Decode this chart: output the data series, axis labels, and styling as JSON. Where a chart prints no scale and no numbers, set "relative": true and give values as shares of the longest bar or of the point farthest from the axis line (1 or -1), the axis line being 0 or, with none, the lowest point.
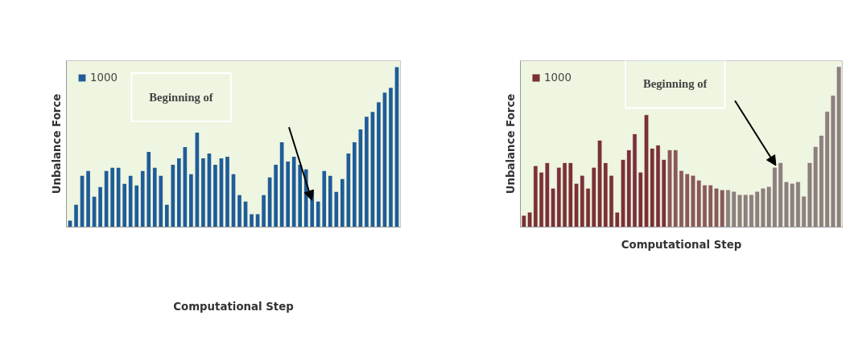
{
  "chart_data": [
    {
      "type": "bar",
      "relative": true,
      "xlabel": "Computational Step",
      "ylabel": "Unbalance Force",
      "legend": "top left",
      "grid": false,
      "annotations": [
        "Beginning of"
      ],
      "categories": [
        null,
        null,
        null,
        null,
        null,
        null,
        null,
        null,
        null,
        null,
        null,
        null,
        null,
        null,
        null,
        null,
        null,
        null,
        null,
        null,
        null,
        null,
        null,
        null,
        null,
        null,
        null,
        null,
        null,
        null,
        null,
        null,
        null,
        null,
        null,
        null,
        null,
        null,
        null,
        null,
        null,
        null,
        null,
        null,
        null,
        null,
        null,
        null,
        null,
        null,
        null,
        null,
        null,
        null,
        null
      ],
      "series": [
        {
          "name": "1000",
          "color": "#1f5c99",
          "values": [
            0.04,
            0.14,
            0.32,
            0.35,
            0.19,
            0.25,
            0.35,
            0.37,
            0.37,
            0.27,
            0.32,
            0.26,
            0.35,
            0.47,
            0.37,
            0.32,
            0.14,
            0.39,
            0.43,
            0.5,
            0.33,
            0.59,
            0.43,
            0.46,
            0.39,
            0.43,
            0.44,
            0.33,
            0.2,
            0.16,
            0.08,
            0.08,
            0.2,
            0.31,
            0.39,
            0.53,
            0.41,
            0.44,
            0.39,
            0.36,
            0.22,
            0.16,
            0.35,
            0.32,
            0.22,
            0.3,
            0.46,
            0.53,
            0.61,
            0.69,
            0.72,
            0.78,
            0.84,
            0.87,
            1
          ]
        }
      ]
    },
    {
      "type": "bar",
      "relative": true,
      "xlabel": "Computational Step",
      "ylabel": "Unbalance Force",
      "legend": "top left",
      "grid": false,
      "annotations": [
        "Beginning of"
      ],
      "categories": [
        null,
        null,
        null,
        null,
        null,
        null,
        null,
        null,
        null,
        null,
        null,
        null,
        null,
        null,
        null,
        null,
        null,
        null,
        null,
        null,
        null,
        null,
        null,
        null,
        null,
        null,
        null,
        null,
        null,
        null,
        null,
        null,
        null,
        null,
        null,
        null,
        null,
        null,
        null,
        null,
        null,
        null,
        null,
        null,
        null,
        null,
        null,
        null,
        null,
        null,
        null,
        null,
        null,
        null,
        null
      ],
      "series": [
        {
          "name": "1000",
          "color": "#7b3038",
          "colors": [
            "#7b3038",
            "#7b3038",
            "#7b3038",
            "#7b3038",
            "#7b3038",
            "#7b3038",
            "#7b3038",
            "#7b3038",
            "#7b3038",
            "#7b3038",
            "#7b3038",
            "#7b3038",
            "#7b3038",
            "#7b3038",
            "#7b3038",
            "#7b3038",
            "#7b3038",
            "#7b3038",
            "#7b3038",
            "#7b3038",
            "#7b3038",
            "#7b3038",
            "#7b3038",
            "#7b3038",
            "#7b3038",
            "#8a5a5a",
            "#8a5a5a",
            "#8a5a5a",
            "#8a5a5a",
            "#8a5a5a",
            "#8a5a5a",
            "#8a5a5a",
            "#8a5a5a",
            "#8a5a5a",
            "#8a5a5a",
            "#8a8282",
            "#8a8282",
            "#8a8282",
            "#8a8282",
            "#8a8282",
            "#8a8282",
            "#8a8282",
            "#8a8282",
            "#8a8282",
            "#8a8282",
            "#8a8282",
            "#8a8282",
            "#8a8282",
            "#8a8282",
            "#8a8282",
            "#8a8282",
            "#8a8282",
            "#8a8282",
            "#8a8282",
            "#8a8282"
          ],
          "values": [
            0.07,
            0.09,
            0.38,
            0.34,
            0.4,
            0.24,
            0.37,
            0.4,
            0.4,
            0.27,
            0.32,
            0.24,
            0.37,
            0.54,
            0.4,
            0.32,
            0.09,
            0.42,
            0.48,
            0.58,
            0.34,
            0.7,
            0.49,
            0.51,
            0.42,
            0.48,
            0.48,
            0.35,
            0.33,
            0.32,
            0.29,
            0.26,
            0.26,
            0.24,
            0.23,
            0.23,
            0.22,
            0.2,
            0.2,
            0.2,
            0.22,
            0.24,
            0.25,
            0.37,
            0.4,
            0.28,
            0.27,
            0.28,
            0.19,
            0.4,
            0.5,
            0.57,
            0.72,
            0.82,
            1
          ]
        }
      ]
    }
  ]
}
